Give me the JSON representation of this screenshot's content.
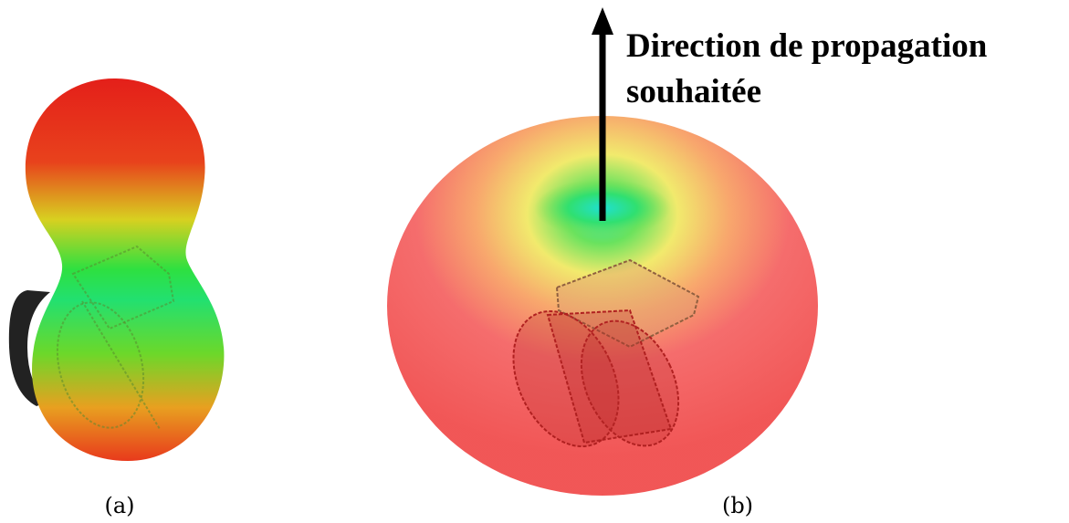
{
  "annotation": {
    "lines": [
      "Direction de propagation",
      "souhaitée"
    ]
  },
  "captions": [
    "(a)",
    "(b)"
  ]
}
